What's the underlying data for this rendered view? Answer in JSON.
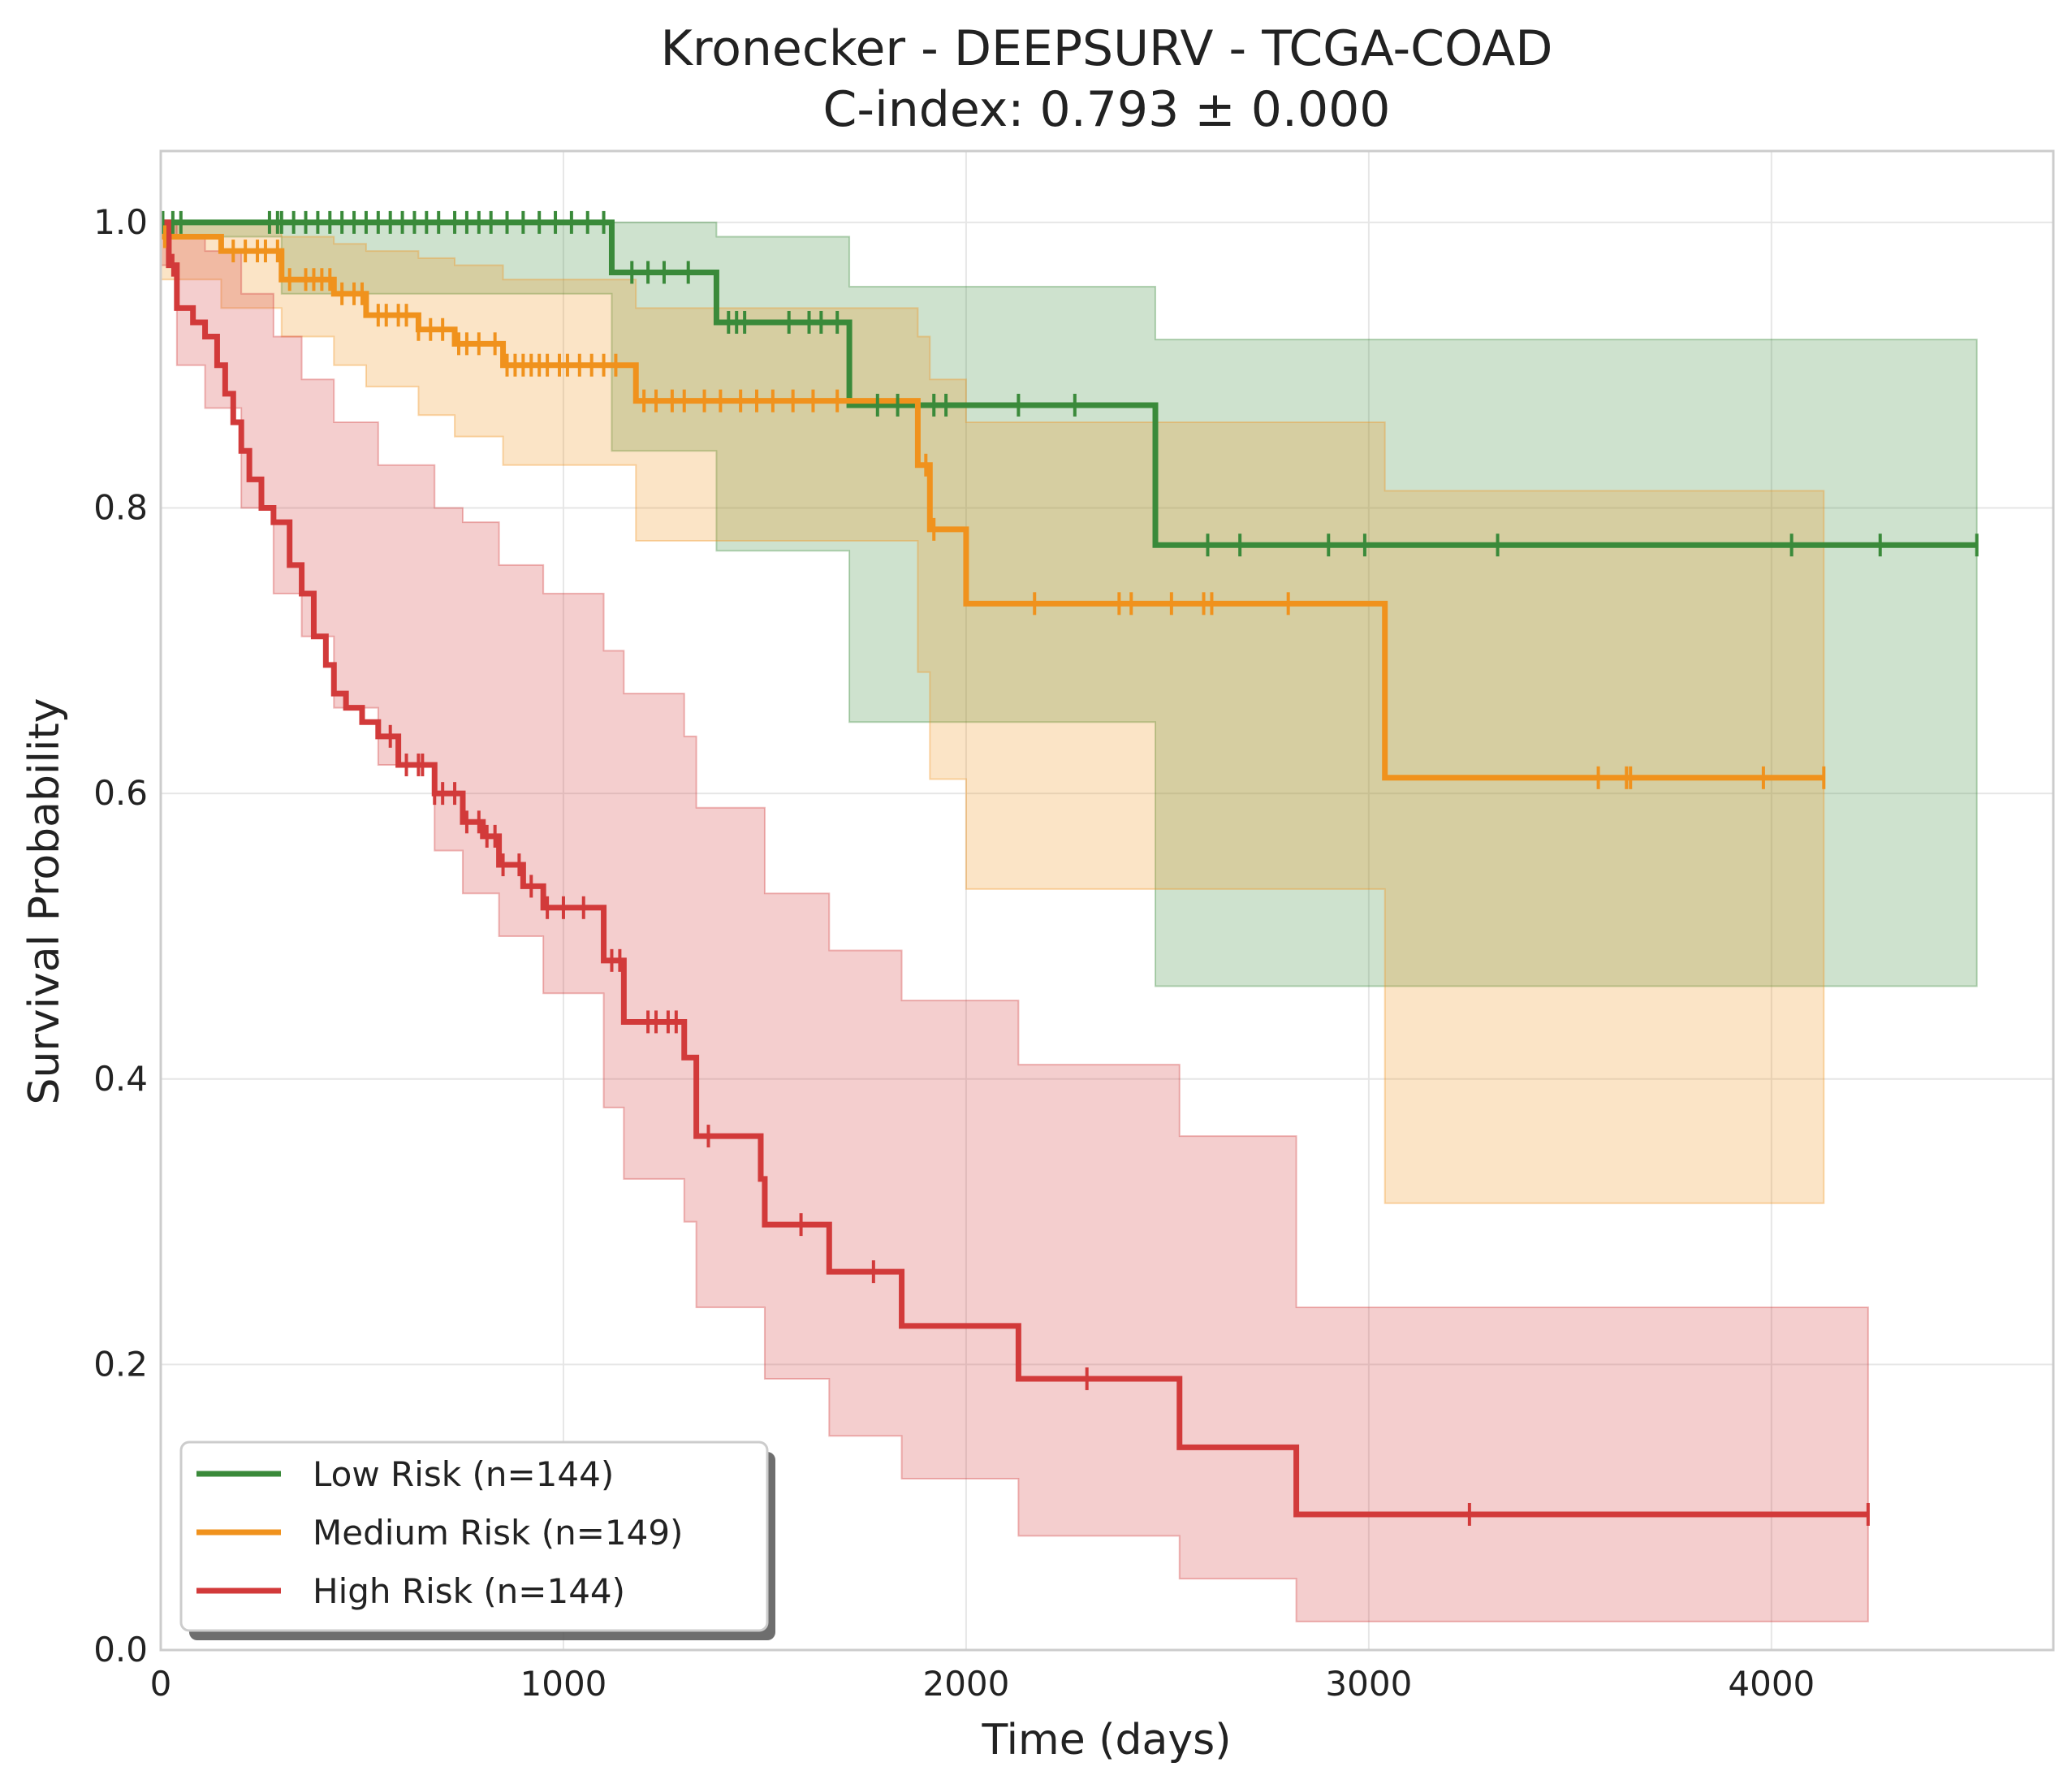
{
  "chart_data": {
    "type": "line",
    "title": "Kronecker - DEEPSURV - TCGA-COAD",
    "subtitle": "C-index: 0.793 ± 0.000",
    "xlabel": "Time (days)",
    "ylabel": "Survival Probability",
    "xlim": [
      0,
      4700
    ],
    "ylim": [
      0,
      1.05
    ],
    "xticks": [
      0,
      1000,
      2000,
      3000,
      4000
    ],
    "xtick_labels": [
      "0",
      "1000",
      "2000",
      "3000",
      "4000"
    ],
    "yticks": [
      0,
      0.2,
      0.4,
      0.6,
      0.8,
      1.0
    ],
    "ytick_labels": [
      "0.0",
      "0.2",
      "0.4",
      "0.6",
      "0.8",
      "1.0"
    ],
    "grid": true,
    "legend_position": "lower-left",
    "series": [
      {
        "name": "Low Risk (n=144)",
        "color": "#3a8a3a",
        "steps": [
          [
            0,
            1.0
          ],
          [
            1120,
            0.965
          ],
          [
            1380,
            0.93
          ],
          [
            1710,
            0.872
          ],
          [
            2470,
            0.774
          ],
          [
            4510,
            0.774
          ]
        ],
        "ci_upper": [
          [
            0,
            1.0
          ],
          [
            1120,
            1.0
          ],
          [
            1380,
            0.99
          ],
          [
            1710,
            0.955
          ],
          [
            2470,
            0.918
          ],
          [
            4510,
            0.918
          ]
        ],
        "ci_lower": [
          [
            0,
            0.99
          ],
          [
            300,
            0.95
          ],
          [
            1120,
            0.84
          ],
          [
            1380,
            0.77
          ],
          [
            1710,
            0.65
          ],
          [
            2470,
            0.465
          ],
          [
            4510,
            0.465
          ]
        ],
        "censored": [
          5,
          30,
          50,
          270,
          290,
          300,
          330,
          360,
          390,
          420,
          450,
          480,
          510,
          540,
          570,
          600,
          630,
          660,
          690,
          730,
          760,
          790,
          820,
          860,
          900,
          940,
          980,
          1020,
          1060,
          1100,
          1170,
          1210,
          1250,
          1310,
          1410,
          1430,
          1450,
          1560,
          1610,
          1640,
          1680,
          1780,
          1830,
          1920,
          1950,
          2130,
          2270,
          2600,
          2680,
          2900,
          2990,
          3320,
          4050,
          4270,
          4510
        ]
      },
      {
        "name": "Medium Risk (n=149)",
        "color": "#f0921d",
        "steps": [
          [
            0,
            0.99
          ],
          [
            150,
            0.98
          ],
          [
            300,
            0.96
          ],
          [
            430,
            0.95
          ],
          [
            510,
            0.935
          ],
          [
            640,
            0.925
          ],
          [
            730,
            0.915
          ],
          [
            850,
            0.9
          ],
          [
            1180,
            0.875
          ],
          [
            1880,
            0.83
          ],
          [
            1910,
            0.785
          ],
          [
            2000,
            0.733
          ],
          [
            3040,
            0.611
          ],
          [
            4130,
            0.611
          ]
        ],
        "ci_upper": [
          [
            0,
            1.0
          ],
          [
            150,
            1.0
          ],
          [
            300,
            0.99
          ],
          [
            430,
            0.985
          ],
          [
            510,
            0.98
          ],
          [
            640,
            0.975
          ],
          [
            730,
            0.97
          ],
          [
            850,
            0.96
          ],
          [
            1180,
            0.94
          ],
          [
            1880,
            0.92
          ],
          [
            1910,
            0.89
          ],
          [
            2000,
            0.86
          ],
          [
            3040,
            0.812
          ],
          [
            4130,
            0.812
          ]
        ],
        "ci_lower": [
          [
            0,
            0.96
          ],
          [
            150,
            0.94
          ],
          [
            300,
            0.92
          ],
          [
            430,
            0.9
          ],
          [
            510,
            0.885
          ],
          [
            640,
            0.865
          ],
          [
            730,
            0.85
          ],
          [
            850,
            0.83
          ],
          [
            1180,
            0.777
          ],
          [
            1880,
            0.685
          ],
          [
            1910,
            0.61
          ],
          [
            2000,
            0.533
          ],
          [
            3040,
            0.313
          ],
          [
            4130,
            0.313
          ]
        ],
        "censored": [
          10,
          180,
          210,
          240,
          260,
          290,
          320,
          360,
          380,
          400,
          420,
          450,
          480,
          500,
          540,
          560,
          590,
          610,
          640,
          670,
          700,
          740,
          760,
          790,
          830,
          860,
          880,
          900,
          920,
          940,
          960,
          990,
          1010,
          1040,
          1070,
          1100,
          1130,
          1200,
          1230,
          1270,
          1300,
          1350,
          1390,
          1440,
          1480,
          1520,
          1570,
          1620,
          1680,
          1900,
          1920,
          2170,
          2380,
          2410,
          2510,
          2590,
          2610,
          2800,
          3570,
          3640,
          3650,
          3980,
          4130
        ]
      },
      {
        "name": "High Risk (n=144)",
        "color": "#d23a3a",
        "steps": [
          [
            0,
            1.0
          ],
          [
            20,
            0.97
          ],
          [
            40,
            0.94
          ],
          [
            80,
            0.93
          ],
          [
            110,
            0.92
          ],
          [
            140,
            0.9
          ],
          [
            160,
            0.88
          ],
          [
            180,
            0.86
          ],
          [
            200,
            0.84
          ],
          [
            220,
            0.82
          ],
          [
            250,
            0.8
          ],
          [
            280,
            0.79
          ],
          [
            320,
            0.76
          ],
          [
            350,
            0.74
          ],
          [
            380,
            0.71
          ],
          [
            410,
            0.69
          ],
          [
            430,
            0.67
          ],
          [
            460,
            0.66
          ],
          [
            500,
            0.65
          ],
          [
            540,
            0.64
          ],
          [
            590,
            0.62
          ],
          [
            680,
            0.6
          ],
          [
            750,
            0.58
          ],
          [
            800,
            0.57
          ],
          [
            840,
            0.55
          ],
          [
            900,
            0.535
          ],
          [
            950,
            0.52
          ],
          [
            1100,
            0.483
          ],
          [
            1150,
            0.44
          ],
          [
            1300,
            0.415
          ],
          [
            1330,
            0.36
          ],
          [
            1490,
            0.33
          ],
          [
            1500,
            0.298
          ],
          [
            1660,
            0.265
          ],
          [
            1840,
            0.227
          ],
          [
            2130,
            0.19
          ],
          [
            2530,
            0.142
          ],
          [
            2820,
            0.095
          ],
          [
            4240,
            0.095
          ]
        ],
        "ci_upper": [
          [
            0,
            1.0
          ],
          [
            40,
            0.99
          ],
          [
            110,
            0.98
          ],
          [
            200,
            0.95
          ],
          [
            280,
            0.92
          ],
          [
            350,
            0.89
          ],
          [
            430,
            0.86
          ],
          [
            540,
            0.83
          ],
          [
            680,
            0.8
          ],
          [
            750,
            0.79
          ],
          [
            840,
            0.76
          ],
          [
            950,
            0.74
          ],
          [
            1100,
            0.7
          ],
          [
            1150,
            0.67
          ],
          [
            1300,
            0.64
          ],
          [
            1330,
            0.59
          ],
          [
            1500,
            0.53
          ],
          [
            1660,
            0.49
          ],
          [
            1840,
            0.455
          ],
          [
            2130,
            0.41
          ],
          [
            2530,
            0.36
          ],
          [
            2820,
            0.24
          ],
          [
            4240,
            0.24
          ]
        ],
        "ci_lower": [
          [
            0,
            0.97
          ],
          [
            40,
            0.9
          ],
          [
            110,
            0.87
          ],
          [
            200,
            0.8
          ],
          [
            280,
            0.74
          ],
          [
            350,
            0.71
          ],
          [
            430,
            0.66
          ],
          [
            540,
            0.62
          ],
          [
            680,
            0.56
          ],
          [
            750,
            0.53
          ],
          [
            840,
            0.5
          ],
          [
            950,
            0.46
          ],
          [
            1100,
            0.38
          ],
          [
            1150,
            0.33
          ],
          [
            1300,
            0.3
          ],
          [
            1330,
            0.24
          ],
          [
            1500,
            0.19
          ],
          [
            1660,
            0.15
          ],
          [
            1840,
            0.12
          ],
          [
            2130,
            0.08
          ],
          [
            2530,
            0.05
          ],
          [
            2820,
            0.02
          ],
          [
            4240,
            0.02
          ]
        ],
        "censored": [
          30,
          570,
          610,
          640,
          650,
          680,
          700,
          730,
          760,
          790,
          810,
          830,
          850,
          890,
          920,
          960,
          1000,
          1050,
          1120,
          1140,
          1210,
          1230,
          1260,
          1280,
          1360,
          1590,
          1770,
          2300,
          3250,
          4240
        ]
      }
    ]
  }
}
